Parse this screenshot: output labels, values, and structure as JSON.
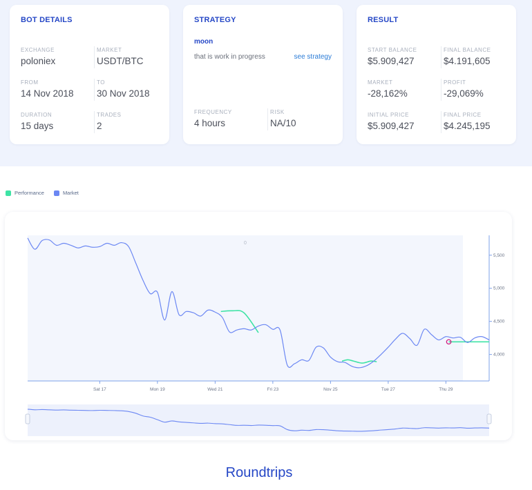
{
  "bot_details": {
    "title": "BOT DETAILS",
    "exchange_label": "EXCHANGE",
    "exchange": "poloniex",
    "market_label": "MARKET",
    "market": "USDT/BTC",
    "from_label": "FROM",
    "from": "14 Nov 2018",
    "to_label": "TO",
    "to": "30 Nov 2018",
    "duration_label": "DURATION",
    "duration": "15 days",
    "trades_label": "TRADES",
    "trades": "2"
  },
  "strategy": {
    "title": "STRATEGY",
    "name": "moon",
    "description": "that is work in progress",
    "link": "see strategy",
    "frequency_label": "FREQUENCY",
    "frequency": "4 hours",
    "risk_label": "RISK",
    "risk": "NA/10"
  },
  "result": {
    "title": "RESULT",
    "start_balance_label": "START BALANCE",
    "start_balance": "$5.909,427",
    "final_balance_label": "FINAL BALANCE",
    "final_balance": "$4.191,605",
    "market_label": "MARKET",
    "market": "-28,162%",
    "profit_label": "PROFIT",
    "profit": "-29,069%",
    "initial_price_label": "INITIAL PRICE",
    "initial_price": "$5.909,427",
    "final_price_label": "FINAL PRICE",
    "final_price": "$4.245,195"
  },
  "legend": [
    {
      "name": "Performance",
      "color": "#3ee3a5"
    },
    {
      "name": "Market",
      "color": "#6b87f3"
    }
  ],
  "chart_data": {
    "type": "line",
    "x_ticks": [
      "Sat 17",
      "Mon 19",
      "Wed 21",
      "Fri 23",
      "Nov 25",
      "Tue 27",
      "Thu 29"
    ],
    "y_ticks": [
      "5,500",
      "5,000",
      "4,500",
      "4,000"
    ],
    "ylim": [
      3600,
      5800
    ],
    "top_marker": "0",
    "series": [
      {
        "name": "Market",
        "color": "#6b87f3",
        "x": [
          14.5,
          14.75,
          15,
          15.25,
          15.5,
          15.75,
          16,
          16.25,
          16.5,
          16.75,
          17,
          17.25,
          17.5,
          17.75,
          18,
          18.25,
          18.5,
          18.75,
          19,
          19.25,
          19.5,
          19.75,
          20,
          20.25,
          20.5,
          20.75,
          21,
          21.25,
          21.5,
          21.75,
          22,
          22.25,
          22.5,
          22.75,
          23,
          23.25,
          23.5,
          23.75,
          24,
          24.25,
          24.5,
          24.75,
          25,
          25.25,
          25.5,
          25.75,
          26,
          26.25,
          26.5,
          26.75,
          27,
          27.25,
          27.5,
          27.75,
          28,
          28.25,
          28.5,
          28.75,
          29,
          29.25,
          29.5,
          29.75,
          30,
          30.25,
          30.5
        ],
        "y": [
          5760,
          5590,
          5720,
          5730,
          5650,
          5680,
          5650,
          5610,
          5640,
          5620,
          5630,
          5680,
          5650,
          5690,
          5630,
          5380,
          5120,
          4920,
          4940,
          4520,
          4950,
          4600,
          4650,
          4630,
          4580,
          4670,
          4640,
          4560,
          4340,
          4370,
          4390,
          4370,
          4430,
          4450,
          4380,
          4370,
          3840,
          3860,
          3920,
          3910,
          4110,
          4100,
          3960,
          3890,
          3880,
          3820,
          3800,
          3830,
          3900,
          4000,
          4110,
          4230,
          4320,
          4240,
          4140,
          4380,
          4300,
          4220,
          4270,
          4250,
          4260,
          4180,
          4250,
          4270,
          4220
        ],
        "overview_y": [
          5750,
          5700,
          5720,
          5700,
          5680,
          5690,
          5670,
          5660,
          5650,
          5640,
          5660,
          5650,
          5640,
          5620,
          5560,
          5420,
          5200,
          5100,
          4900,
          4700,
          4800,
          4720,
          4680,
          4640,
          4600,
          4620,
          4580,
          4560,
          4500,
          4440,
          4450,
          4430,
          4460,
          4450,
          4420,
          4400,
          4100,
          4000,
          4050,
          4030,
          4100,
          4090,
          4050,
          4000,
          3980,
          3970,
          3960,
          3980,
          4010,
          4060,
          4100,
          4150,
          4220,
          4200,
          4180,
          4250,
          4240,
          4220,
          4240,
          4230,
          4250,
          4210,
          4230,
          4240,
          4220
        ]
      },
      {
        "name": "Performance",
        "color": "#3ee3a5",
        "x": [
          21.2,
          21.6,
          22,
          22.5,
          25.4,
          25.6,
          25.8,
          26.1,
          26.4,
          26.6,
          29.1,
          29.4,
          30.5
        ],
        "y": [
          4650,
          4660,
          4630,
          4330,
          3900,
          3920,
          3900,
          3870,
          3900,
          3890,
          4191,
          4191,
          4191
        ]
      }
    ],
    "marker": {
      "x": 29.1,
      "y": 4191,
      "color": "#d01f80"
    }
  },
  "footer_title": "Roundtrips"
}
